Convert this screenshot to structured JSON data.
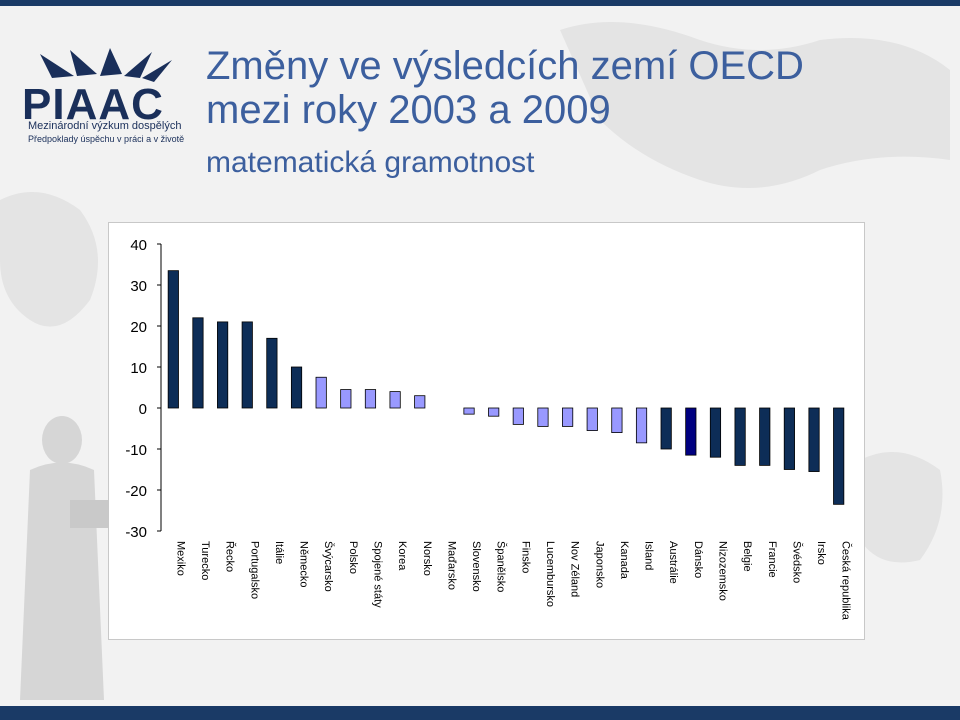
{
  "header": {
    "logo_text": "PIAAC",
    "logo_line1": "Mezinárodní výzkum dospělých",
    "logo_line2": "Předpoklady úspěchu v práci a v životě",
    "title_line1": "Změny ve výsledcích zemí OECD",
    "title_line2": "mezi roky 2003 a 2009",
    "subtitle": "matematická gramotnost"
  },
  "colors": {
    "dark_bar": "#0d2d57",
    "light_bar": "#9999ff",
    "highlight_bar": "#000080",
    "title": "#3c5f9e"
  },
  "chart_data": {
    "type": "bar",
    "title": "",
    "xlabel": "",
    "ylabel": "",
    "ylim": [
      -30,
      40
    ],
    "yticks": [
      40,
      30,
      20,
      10,
      0,
      -10,
      -20,
      -30
    ],
    "grid": false,
    "categories": [
      "Mexiko",
      "Turecko",
      "Řecko",
      "Portugalsko",
      "Itálie",
      "Německo",
      "Švýcarsko",
      "Polsko",
      "Spojené státy",
      "Korea",
      "Norsko",
      "Maďarsko",
      "Slovensko",
      "Španělsko",
      "Finsko",
      "Lucembursko",
      "Nov Zéland",
      "Japonsko",
      "Kanada",
      "Island",
      "Austrálie",
      "Dánsko",
      "Nizozemsko",
      "Belgie",
      "Francie",
      "Švédsko",
      "Irsko",
      "Česká republika"
    ],
    "values": [
      33.5,
      22,
      21,
      21,
      17,
      10,
      7.5,
      4.5,
      4.5,
      4,
      3,
      0,
      -1.5,
      -2,
      -4,
      -4.5,
      -4.5,
      -5.5,
      -6,
      -8.5,
      -10,
      -11.5,
      -12,
      -14,
      -14,
      -15,
      -15.5,
      -23.5
    ],
    "bar_styles": [
      "dark",
      "dark",
      "dark",
      "dark",
      "dark",
      "dark",
      "light",
      "light",
      "light",
      "light",
      "light",
      "none",
      "light",
      "light",
      "light",
      "light",
      "light",
      "light",
      "light",
      "light",
      "dark",
      "highlight",
      "dark",
      "dark",
      "dark",
      "dark",
      "dark",
      "dark"
    ]
  }
}
